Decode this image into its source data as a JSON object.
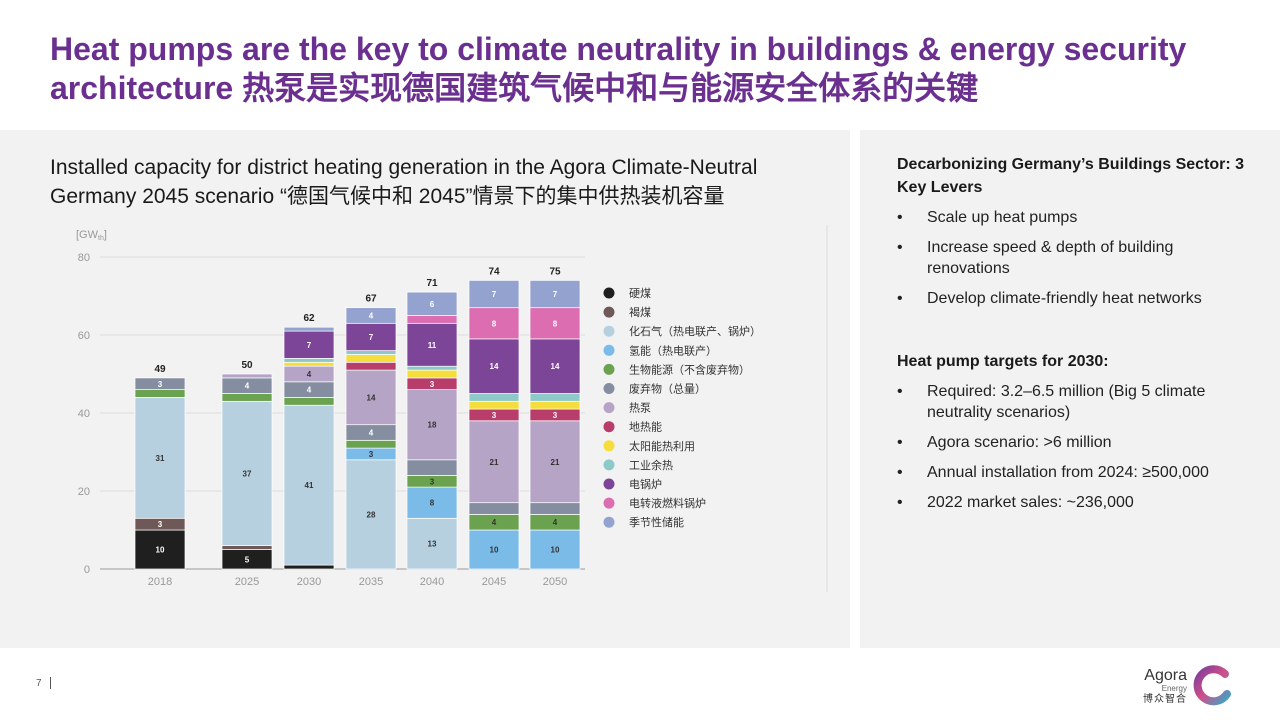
{
  "title": "Heat pumps are the key to climate neutrality in buildings & energy security architecture 热泵是实现德国建筑气候中和与能源安全体系的关键",
  "chart_heading": "Installed capacity for district heating generation in the Agora Climate-Neutral Germany 2045 scenario “德国气候中和 2045”情景下的集中供热装机容量",
  "colors": {
    "title": "#6b2f8f",
    "series": [
      "#1f1f1f",
      "#6e5858",
      "#b6d0e0",
      "#7bbbe8",
      "#6aa24f",
      "#858ea0",
      "#b5a4c6",
      "#b83d6b",
      "#f5dd3e",
      "#8ec9c9",
      "#7d4597",
      "#db6db0",
      "#94a2cf"
    ],
    "light_text_series": [
      0,
      1,
      5,
      7,
      10,
      11,
      12
    ]
  },
  "chart_data": {
    "type": "bar",
    "stacked": true,
    "unit": "[GW",
    "unit_sub": "th",
    "unit_close": "]",
    "ylim": [
      0,
      80
    ],
    "y_ticks": [
      0,
      20,
      40,
      60,
      80
    ],
    "categories": [
      "2018",
      "2025",
      "2030",
      "2035",
      "2040",
      "2045",
      "2050"
    ],
    "totals": [
      49,
      50,
      62,
      67,
      71,
      74,
      75
    ],
    "series": [
      {
        "name": "硬煤",
        "values": [
          10,
          5,
          1,
          0,
          0,
          0,
          0
        ],
        "labels": [
          "10",
          "5",
          "",
          "",
          "",
          "",
          ""
        ]
      },
      {
        "name": "褐煤",
        "values": [
          3,
          1,
          0,
          0,
          0,
          0,
          0
        ],
        "labels": [
          "3",
          "",
          "",
          "",
          "",
          "",
          ""
        ]
      },
      {
        "name": "化石气（热电联产、锅炉）",
        "values": [
          31,
          37,
          41,
          28,
          13,
          0,
          0
        ],
        "labels": [
          "31",
          "37",
          "41",
          "28",
          "13",
          "",
          ""
        ]
      },
      {
        "name": "氢能（热电联产）",
        "values": [
          0,
          0,
          0,
          3,
          8,
          10,
          10
        ],
        "labels": [
          "",
          "",
          "",
          "3",
          "8",
          "10",
          "10"
        ]
      },
      {
        "name": "生物能源（不含废弃物）",
        "values": [
          2,
          2,
          2,
          2,
          3,
          4,
          4
        ],
        "labels": [
          "",
          "",
          "",
          "",
          "3",
          "4",
          "4"
        ]
      },
      {
        "name": "废弃物（总量）",
        "values": [
          3,
          4,
          4,
          4,
          4,
          3,
          3
        ],
        "labels": [
          "3",
          "4",
          "4",
          "4",
          "",
          "",
          ""
        ]
      },
      {
        "name": "热泵",
        "values": [
          0,
          1,
          4,
          14,
          18,
          21,
          21
        ],
        "labels": [
          "",
          "",
          "4",
          "14",
          "18",
          "21",
          "21"
        ]
      },
      {
        "name": "地热能",
        "values": [
          0,
          0,
          0,
          2,
          3,
          3,
          3
        ],
        "labels": [
          "",
          "",
          "",
          "",
          "3",
          "3",
          "3"
        ]
      },
      {
        "name": "太阳能热利用",
        "values": [
          0,
          0,
          1,
          2,
          2,
          2,
          2
        ],
        "labels": [
          "",
          "",
          "",
          "",
          "",
          "",
          ""
        ]
      },
      {
        "name": "工业余热",
        "values": [
          0,
          0,
          1,
          1,
          1,
          2,
          2
        ],
        "labels": [
          "",
          "",
          "",
          "",
          "",
          "",
          ""
        ]
      },
      {
        "name": "电锅炉",
        "values": [
          0,
          0,
          7,
          7,
          11,
          14,
          14
        ],
        "labels": [
          "",
          "",
          "7",
          "7",
          "11",
          "14",
          "14"
        ]
      },
      {
        "name": "电转液燃料锅炉",
        "values": [
          0,
          0,
          0,
          0,
          2,
          8,
          8
        ],
        "labels": [
          "",
          "",
          "",
          "",
          "",
          "8",
          "8"
        ]
      },
      {
        "name": "季节性储能",
        "values": [
          0,
          0,
          1,
          4,
          6,
          7,
          7
        ],
        "labels": [
          "",
          "",
          "",
          "4",
          "6",
          "7",
          "7"
        ]
      }
    ]
  },
  "sidebar": {
    "levers_heading": "Decarbonizing Germany’s Buildings Sector: 3 Key Levers",
    "bullet_symbol": "•",
    "levers": [
      "Scale up heat pumps",
      "Increase speed & depth of building renovations",
      "Develop climate-friendly heat networks"
    ],
    "targets_heading": "Heat pump targets for 2030:",
    "targets": [
      "Required: 3.2–6.5 million (Big 5 climate neutrality scenarios)",
      "Agora scenario: >6 million",
      "Annual installation from 2024: ≥500,000",
      "2022 market sales: ~236,000"
    ]
  },
  "footer": {
    "page_number": "7",
    "logo_name": "Agora",
    "logo_sub": "Energy",
    "logo_cn": "博众智合"
  }
}
